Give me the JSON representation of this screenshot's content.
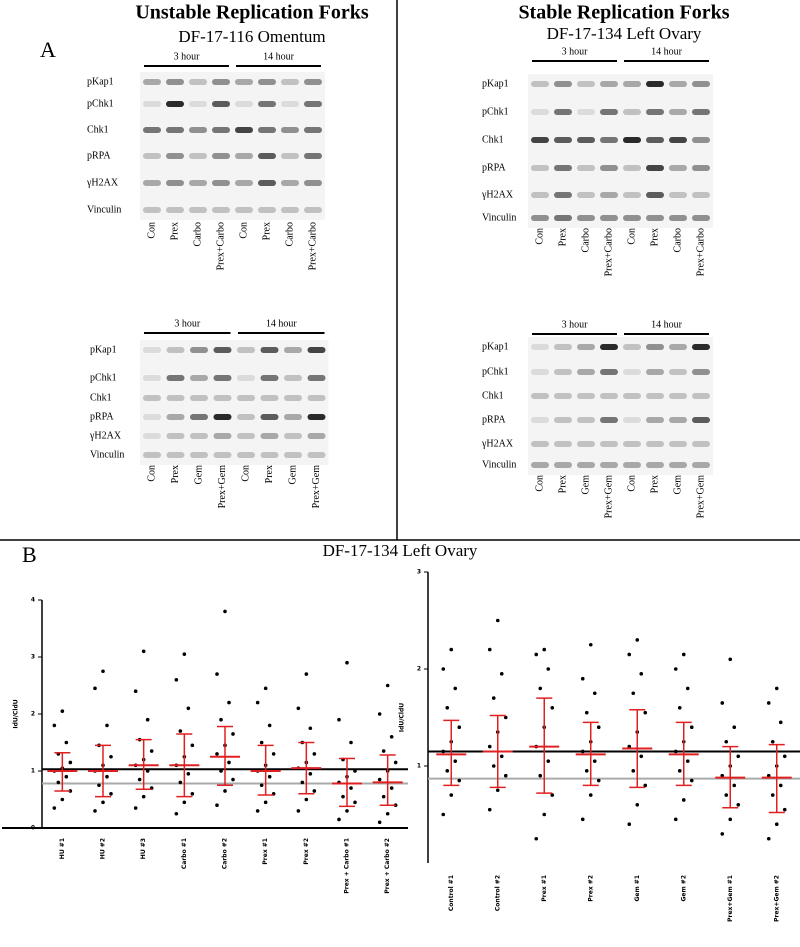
{
  "figure_a": {
    "label": "A",
    "left": {
      "title": "Unstable Replication Forks",
      "subtitle": "DF-17-116 Omentum"
    },
    "right": {
      "title": "Stable Replication Forks",
      "subtitle": "DF-17-134 Left Ovary"
    },
    "blots": [
      {
        "time_labels": [
          "3 hour",
          "14 hour"
        ],
        "lanes": [
          "Con",
          "Prex",
          "Carbo",
          "Prex+Carbo",
          "Con",
          "Prex",
          "Carbo",
          "Prex+Carbo"
        ],
        "rows": [
          {
            "label": "pKap1",
            "bands": [
              3,
              4,
              2,
              4,
              3,
              4,
              2,
              4
            ]
          },
          {
            "label": "pChk1",
            "bands": [
              1,
              8,
              1,
              6,
              1,
              5,
              1,
              5
            ]
          },
          {
            "label": "Chk1",
            "bands": [
              5,
              5,
              4,
              5,
              7,
              5,
              4,
              5
            ]
          },
          {
            "label": "pRPA",
            "bands": [
              2,
              4,
              2,
              4,
              3,
              6,
              2,
              5
            ]
          },
          {
            "label": "γH2AX",
            "bands": [
              3,
              4,
              3,
              4,
              3,
              6,
              3,
              4
            ]
          },
          {
            "label": "Vinculin",
            "bands": [
              2,
              2,
              2,
              2,
              2,
              2,
              2,
              2
            ]
          }
        ]
      },
      {
        "time_labels": [
          "3 hour",
          "14 hour"
        ],
        "lanes": [
          "Con",
          "Prex",
          "Gem",
          "Prex+Gem",
          "Con",
          "Prex",
          "Gem",
          "Prex+Gem"
        ],
        "rows": [
          {
            "label": "pKap1",
            "bands": [
              1,
              2,
              4,
              6,
              2,
              6,
              3,
              7
            ]
          },
          {
            "label": "pChk1",
            "bands": [
              1,
              5,
              3,
              5,
              1,
              5,
              2,
              5
            ]
          },
          {
            "label": "Chk1",
            "bands": [
              2,
              2,
              2,
              2,
              2,
              2,
              2,
              2
            ]
          },
          {
            "label": "pRPA",
            "bands": [
              1,
              3,
              5,
              8,
              2,
              6,
              3,
              8
            ]
          },
          {
            "label": "γH2AX",
            "bands": [
              1,
              2,
              2,
              3,
              2,
              3,
              2,
              3
            ]
          },
          {
            "label": "Vinculin",
            "bands": [
              2,
              2,
              2,
              2,
              2,
              2,
              2,
              2
            ]
          }
        ]
      },
      {
        "time_labels": [
          "3 hour",
          "14 hour"
        ],
        "lanes": [
          "Con",
          "Prex",
          "Carbo",
          "Prex+Carbo",
          "Con",
          "Prex",
          "Carbo",
          "Prex+Carbo"
        ],
        "rows": [
          {
            "label": "pKap1",
            "bands": [
              2,
              4,
              2,
              3,
              3,
              8,
              3,
              4
            ]
          },
          {
            "label": "pChk1",
            "bands": [
              1,
              5,
              1,
              5,
              2,
              5,
              3,
              5
            ]
          },
          {
            "label": "Chk1",
            "bands": [
              7,
              6,
              6,
              5,
              8,
              6,
              7,
              4
            ]
          },
          {
            "label": "pRPA",
            "bands": [
              2,
              5,
              2,
              4,
              2,
              7,
              3,
              4
            ]
          },
          {
            "label": "γH2AX",
            "bands": [
              2,
              5,
              2,
              3,
              2,
              6,
              2,
              2
            ]
          },
          {
            "label": "Vinculin",
            "bands": [
              4,
              5,
              4,
              4,
              4,
              4,
              4,
              4
            ]
          }
        ]
      },
      {
        "time_labels": [
          "3 hour",
          "14 hour"
        ],
        "lanes": [
          "Con",
          "Prex",
          "Gem",
          "Prex+Gem",
          "Con",
          "Prex",
          "Gem",
          "Prex+Gem"
        ],
        "rows": [
          {
            "label": "pKap1",
            "bands": [
              1,
              2,
              3,
              8,
              2,
              4,
              3,
              8
            ]
          },
          {
            "label": "pChk1",
            "bands": [
              1,
              2,
              3,
              5,
              1,
              3,
              2,
              4
            ]
          },
          {
            "label": "Chk1",
            "bands": [
              2,
              2,
              2,
              2,
              2,
              2,
              2,
              2
            ]
          },
          {
            "label": "pRPA",
            "bands": [
              1,
              2,
              2,
              5,
              1,
              3,
              3,
              6
            ]
          },
          {
            "label": "γH2AX",
            "bands": [
              2,
              2,
              2,
              2,
              2,
              2,
              2,
              2
            ]
          },
          {
            "label": "Vinculin",
            "bands": [
              3,
              3,
              3,
              3,
              3,
              3,
              3,
              3
            ]
          }
        ]
      }
    ]
  },
  "figure_b": {
    "label": "B",
    "title": "DF-17-134 Left Ovary"
  },
  "chart_data": [
    {
      "type": "dot",
      "y_label": "IdU/CldU",
      "ylim": [
        0,
        4
      ],
      "yticks": [
        0,
        1,
        2,
        3,
        4
      ],
      "baseline": true,
      "reference_lines": [
        {
          "value": 1.03,
          "color": "#000000"
        },
        {
          "value": 0.78,
          "color": "#aaaaaa"
        }
      ],
      "categories": [
        "HU #1",
        "HU #2",
        "HU #3",
        "Carbo #1",
        "Carbo #2",
        "Prex #1",
        "Prex #2",
        "Prex + Carbo #1",
        "Prex + Carbo #2"
      ],
      "groups": [
        {
          "points": [
            0.35,
            0.5,
            0.65,
            0.8,
            0.9,
            1.0,
            1.05,
            1.15,
            1.3,
            1.5,
            1.8,
            2.05
          ],
          "mean": 1.0,
          "lower": 0.65,
          "upper": 1.32
        },
        {
          "points": [
            0.3,
            0.45,
            0.6,
            0.75,
            0.9,
            1.0,
            1.1,
            1.25,
            1.45,
            1.8,
            2.45,
            2.75
          ],
          "mean": 1.0,
          "lower": 0.55,
          "upper": 1.45
        },
        {
          "points": [
            0.35,
            0.55,
            0.7,
            0.85,
            1.0,
            1.1,
            1.2,
            1.35,
            1.55,
            1.9,
            2.4,
            3.1
          ],
          "mean": 1.1,
          "lower": 0.68,
          "upper": 1.55
        },
        {
          "points": [
            0.25,
            0.45,
            0.6,
            0.8,
            0.95,
            1.1,
            1.25,
            1.45,
            1.7,
            2.1,
            2.6,
            3.05
          ],
          "mean": 1.1,
          "lower": 0.55,
          "upper": 1.65
        },
        {
          "points": [
            0.4,
            0.65,
            0.85,
            1.0,
            1.15,
            1.3,
            1.45,
            1.65,
            1.9,
            2.2,
            2.7,
            3.8
          ],
          "mean": 1.25,
          "lower": 0.75,
          "upper": 1.78
        },
        {
          "points": [
            0.3,
            0.45,
            0.6,
            0.75,
            0.9,
            1.0,
            1.1,
            1.3,
            1.5,
            1.8,
            2.2,
            2.45
          ],
          "mean": 1.0,
          "lower": 0.58,
          "upper": 1.45
        },
        {
          "points": [
            0.3,
            0.5,
            0.65,
            0.8,
            0.95,
            1.05,
            1.15,
            1.3,
            1.5,
            1.75,
            2.1,
            2.7
          ],
          "mean": 1.05,
          "lower": 0.6,
          "upper": 1.5
        },
        {
          "points": [
            0.15,
            0.3,
            0.45,
            0.55,
            0.7,
            0.8,
            0.9,
            1.0,
            1.2,
            1.5,
            1.9,
            2.9
          ],
          "mean": 0.78,
          "lower": 0.38,
          "upper": 1.22
        },
        {
          "points": [
            0.1,
            0.25,
            0.4,
            0.55,
            0.7,
            0.85,
            1.0,
            1.15,
            1.35,
            1.6,
            2.0,
            2.5
          ],
          "mean": 0.8,
          "lower": 0.4,
          "upper": 1.28
        }
      ]
    },
    {
      "type": "dot",
      "y_label": "IdU/CldU",
      "ylim": [
        0,
        3
      ],
      "yticks": [
        1,
        2,
        3
      ],
      "baseline": false,
      "reference_lines": [
        {
          "value": 1.15,
          "color": "#000000"
        },
        {
          "value": 0.87,
          "color": "#aaaaaa"
        }
      ],
      "categories": [
        "Control #1",
        "Control #2",
        "Prex #1",
        "Prex #2",
        "Gem #1",
        "Gem #2",
        "Prex+Gem #1",
        "Prex+Gem #2"
      ],
      "groups": [
        {
          "points": [
            0.5,
            0.7,
            0.85,
            0.95,
            1.05,
            1.15,
            1.25,
            1.4,
            1.6,
            1.8,
            2.0,
            2.2
          ],
          "mean": 1.12,
          "lower": 0.8,
          "upper": 1.47
        },
        {
          "points": [
            0.55,
            0.75,
            0.9,
            1.0,
            1.1,
            1.2,
            1.35,
            1.5,
            1.7,
            1.95,
            2.2,
            2.5
          ],
          "mean": 1.15,
          "lower": 0.78,
          "upper": 1.52
        },
        {
          "points": [
            0.25,
            0.5,
            0.7,
            0.9,
            1.05,
            1.2,
            1.4,
            1.6,
            1.8,
            2.0,
            2.15,
            2.2
          ],
          "mean": 1.2,
          "lower": 0.72,
          "upper": 1.7
        },
        {
          "points": [
            0.45,
            0.7,
            0.85,
            0.95,
            1.05,
            1.15,
            1.25,
            1.4,
            1.55,
            1.75,
            1.9,
            2.25
          ],
          "mean": 1.12,
          "lower": 0.8,
          "upper": 1.45
        },
        {
          "points": [
            0.4,
            0.6,
            0.8,
            0.95,
            1.1,
            1.2,
            1.35,
            1.55,
            1.75,
            1.95,
            2.15,
            2.3
          ],
          "mean": 1.18,
          "lower": 0.78,
          "upper": 1.58
        },
        {
          "points": [
            0.45,
            0.65,
            0.85,
            0.95,
            1.05,
            1.15,
            1.25,
            1.4,
            1.6,
            1.8,
            2.0,
            2.15
          ],
          "mean": 1.12,
          "lower": 0.8,
          "upper": 1.45
        },
        {
          "points": [
            0.3,
            0.45,
            0.6,
            0.7,
            0.8,
            0.9,
            1.0,
            1.1,
            1.25,
            1.4,
            1.65,
            2.1
          ],
          "mean": 0.88,
          "lower": 0.57,
          "upper": 1.2
        },
        {
          "points": [
            0.25,
            0.4,
            0.55,
            0.7,
            0.8,
            0.9,
            1.0,
            1.1,
            1.25,
            1.45,
            1.65,
            1.8
          ],
          "mean": 0.88,
          "lower": 0.52,
          "upper": 1.22
        }
      ]
    }
  ]
}
